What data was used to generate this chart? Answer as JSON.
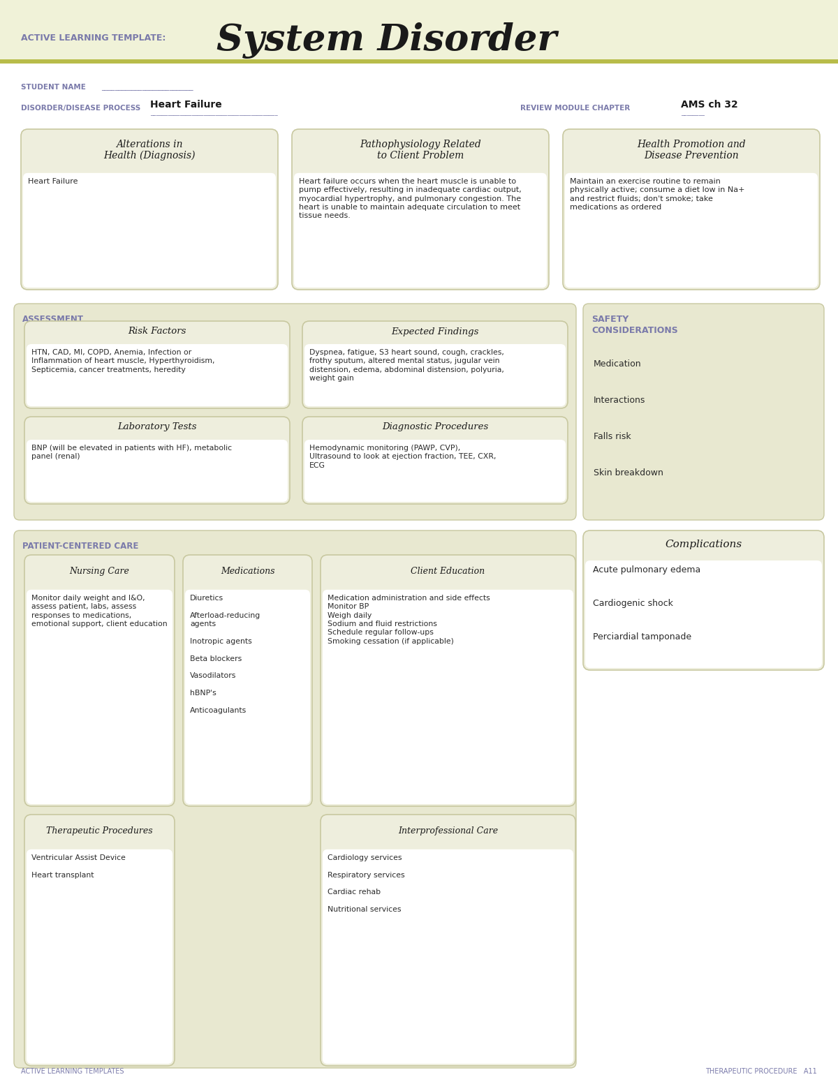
{
  "page_bg": "#ffffff",
  "header_bg": "#f0f2d8",
  "olive_line": "#b8bc4a",
  "purple_text": "#7a7aaa",
  "black_text": "#1a1a1a",
  "dark_text": "#2a2a2a",
  "section_bg_light": "#eeeedd",
  "section_bg_white": "#ffffff",
  "card_border": "#c8c8a0",
  "assess_bg": "#e8e8d0",
  "safety_bg": "#e8e8d0",
  "patient_bg": "#e8e8d0",
  "header_label": "ACTIVE LEARNING TEMPLATE:",
  "header_title": "System Disorder",
  "student_label": "STUDENT NAME",
  "student_line": "___________________________",
  "disorder_label": "DISORDER/DISEASE PROCESS",
  "disorder_value": "Heart Failure",
  "disorder_line": "___________________________________________",
  "review_label": "REVIEW MODULE CHAPTER",
  "review_value": "AMS ch 32",
  "review_line": "________",
  "box1_title": "Alterations in\nHealth (Diagnosis)",
  "box1_content": "Heart Failure",
  "box2_title": "Pathophysiology Related\nto Client Problem",
  "box2_content": "Heart failure occurs when the heart muscle is unable to\npump effectively, resulting in inadequate cardiac output,\nmyocardial hypertrophy, and pulmonary congestion. The\nheart is unable to maintain adequate circulation to meet\ntissue needs.",
  "box3_title": "Health Promotion and\nDisease Prevention",
  "box3_content": "Maintain an exercise routine to remain\nphysically active; consume a diet low in Na+\nand restrict fluids; don't smoke; take\nmedications as ordered",
  "assess_label": "ASSESSMENT",
  "safety_label": "SAFETY\nCONSIDERATIONS",
  "safety_items": [
    "Medication",
    "Interactions",
    "Falls risk",
    "Skin breakdown"
  ],
  "risk_title": "Risk Factors",
  "risk_content": "HTN, CAD, MI, COPD, Anemia, Infection or\nInflammation of heart muscle, Hyperthyroidism,\nSepticemia, cancer treatments, heredity",
  "expected_title": "Expected Findings",
  "expected_content": "Dyspnea, fatigue, S3 heart sound, cough, crackles,\nfrothy sputum, altered mental status, jugular vein\ndistension, edema, abdominal distension, polyuria,\nweight gain",
  "lab_title": "Laboratory Tests",
  "lab_content": "BNP (will be elevated in patients with HF), metabolic\npanel (renal)",
  "diag_title": "Diagnostic Procedures",
  "diag_content": "Hemodynamic monitoring (PAWP, CVP),\nUltrasound to look at ejection fraction, TEE, CXR,\nECG",
  "patient_label": "PATIENT-CENTERED CARE",
  "complications_title": "Complications",
  "complications_items": [
    "Acute pulmonary edema",
    "Cardiogenic shock",
    "Perciardial tamponade"
  ],
  "nursing_title": "Nursing Care",
  "nursing_content": "Monitor daily weight and I&O,\nassess patient, labs, assess\nresponses to medications,\nemotional support, client education",
  "meds_title": "Medications",
  "meds_content": "Diuretics\n\nAfterload-reducing\nagents\n\nInotropic agents\n\nBeta blockers\n\nVasodilators\n\nhBNP's\n\nAnticoagulants",
  "client_edu_title": "Client Education",
  "client_edu_content": "Medication administration and side effects\nMonitor BP\nWeigh daily\nSodium and fluid restrictions\nSchedule regular follow-ups\nSmoking cessation (if applicable)",
  "therapeutic_title": "Therapeutic Procedures",
  "therapeutic_content": "Ventricular Assist Device\n\nHeart transplant",
  "interprof_title": "Interprofessional Care",
  "interprof_content": "Cardiology services\n\nRespiratory services\n\nCardiac rehab\n\nNutritional services",
  "footer_left": "ACTIVE LEARNING TEMPLATES",
  "footer_right": "THERAPEUTIC PROCEDURE   A11"
}
